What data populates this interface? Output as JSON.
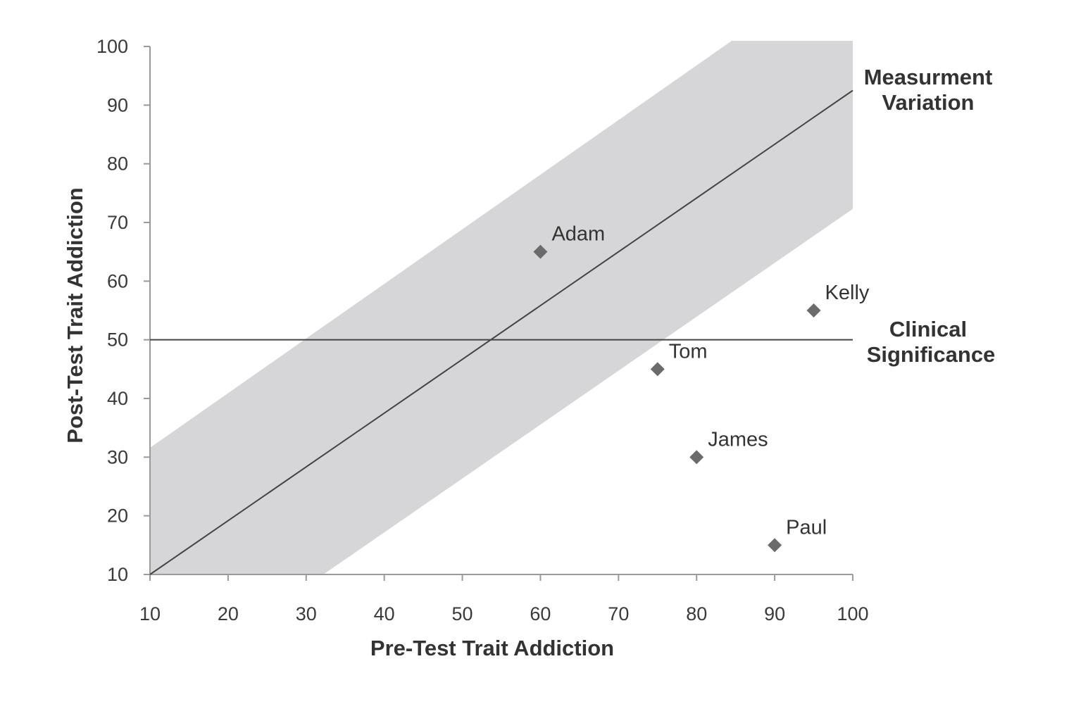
{
  "chart_data": {
    "type": "scatter",
    "title": "",
    "xlabel": "Pre-Test Trait Addiction",
    "ylabel": "Post-Test Trait Addiction",
    "xlim": [
      10,
      100
    ],
    "ylim": [
      10,
      100
    ],
    "x_ticks": [
      10,
      20,
      30,
      40,
      50,
      60,
      70,
      80,
      90,
      100
    ],
    "y_ticks": [
      10,
      20,
      30,
      40,
      50,
      60,
      70,
      80,
      90,
      100
    ],
    "x_tick_labels": [
      "10",
      "20",
      "30",
      "40",
      "50",
      "60",
      "70",
      "80",
      "90",
      "100"
    ],
    "y_tick_labels": [
      "10",
      "20",
      "30",
      "40",
      "50",
      "60",
      "70",
      "80",
      "90",
      "100"
    ],
    "grid": false,
    "points": [
      {
        "label": "Adam",
        "x": 60,
        "y": 65
      },
      {
        "label": "Kelly",
        "x": 95,
        "y": 55
      },
      {
        "label": "Tom",
        "x": 75,
        "y": 45
      },
      {
        "label": "James",
        "x": 80,
        "y": 30
      },
      {
        "label": "Paul",
        "x": 90,
        "y": 15
      }
    ],
    "regression_line": {
      "x": [
        10,
        100
      ],
      "y": [
        10,
        92.5
      ]
    },
    "variation_band": {
      "upper": [
        [
          10,
          31.6
        ],
        [
          84.5,
          101
        ],
        [
          100,
          101
        ]
      ],
      "lower": [
        [
          32.2,
          9.8
        ],
        [
          100,
          72.3
        ]
      ]
    },
    "threshold_line": {
      "y": 50,
      "x": [
        10,
        100
      ]
    },
    "annotations": {
      "measurement_variation": [
        "Measurment",
        "Variation"
      ],
      "clinical_significance": [
        "Clinical",
        "Significance"
      ]
    },
    "colors": {
      "band": "#d6d6d8",
      "line": "#444444",
      "marker": "#6b6b6b",
      "axis": "#9a9a9a"
    }
  }
}
